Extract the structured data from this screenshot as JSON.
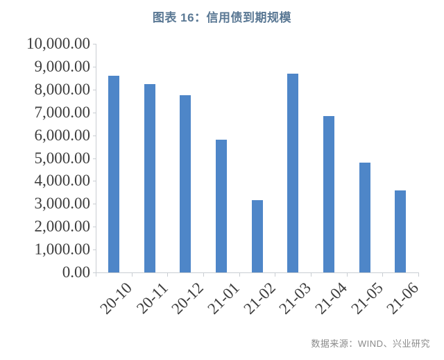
{
  "title": "图表 16：信用债到期规模",
  "source": "数据来源：WIND、兴业研究",
  "colors": {
    "bar": "#4E86C8",
    "title": "#5A7894",
    "axis": "#C9CDD2",
    "tick_label": "#3D3D3D",
    "source": "#8A8A8A"
  },
  "chart_data": {
    "type": "bar",
    "title": "图表 16：信用债到期规模",
    "categories": [
      "20-10",
      "20-11",
      "20-12",
      "21-01",
      "21-02",
      "21-03",
      "21-04",
      "21-05",
      "21-06"
    ],
    "values": [
      8600,
      8250,
      7750,
      5800,
      3150,
      8700,
      6850,
      4800,
      3600
    ],
    "y_tick_labels": [
      "0.00",
      "1,000.00",
      "2,000.00",
      "3,000.00",
      "4,000.00",
      "5,000.00",
      "6,000.00",
      "7,000.00",
      "8,000.00",
      "9,000.00",
      "10,000.00"
    ],
    "ylim": [
      0,
      10000
    ],
    "grid": false,
    "legend_position": "none",
    "xlabel": "",
    "ylabel": ""
  }
}
